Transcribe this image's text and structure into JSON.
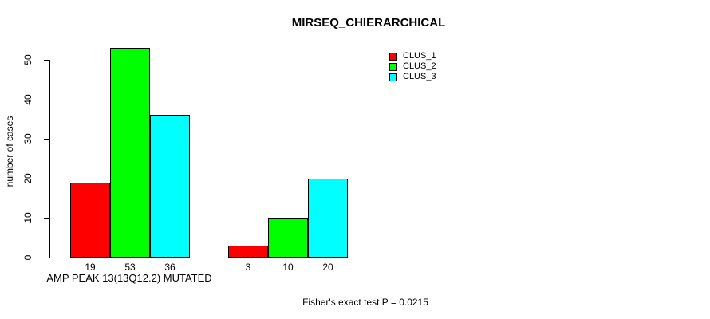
{
  "chart_data": {
    "type": "bar",
    "title": "MIRSEQ_CHIERARCHICAL",
    "ylabel": "number of cases",
    "xlabel": "",
    "ylim": [
      0,
      50
    ],
    "yticks": [
      0,
      10,
      20,
      30,
      40,
      50
    ],
    "grid": false,
    "categories": [
      "AMP PEAK 13(13Q12.2) MUTATED",
      ""
    ],
    "series": [
      {
        "name": "CLUS_1",
        "color": "#ff0000",
        "values": [
          19,
          3
        ]
      },
      {
        "name": "CLUS_2",
        "color": "#00ff00",
        "values": [
          53,
          10
        ]
      },
      {
        "name": "CLUS_3",
        "color": "#00ffff",
        "values": [
          36,
          20
        ]
      }
    ],
    "bar_value_labels": [
      [
        19,
        53,
        36
      ],
      [
        3,
        10,
        20
      ]
    ],
    "legend": {
      "position": "top-right",
      "entries": [
        "CLUS_1",
        "CLUS_2",
        "CLUS_3"
      ]
    },
    "annotation": "Fisher's exact test P = 0.0215"
  },
  "colors": {
    "background": "#ffffff",
    "axis": "#000000",
    "text": "#000000"
  }
}
